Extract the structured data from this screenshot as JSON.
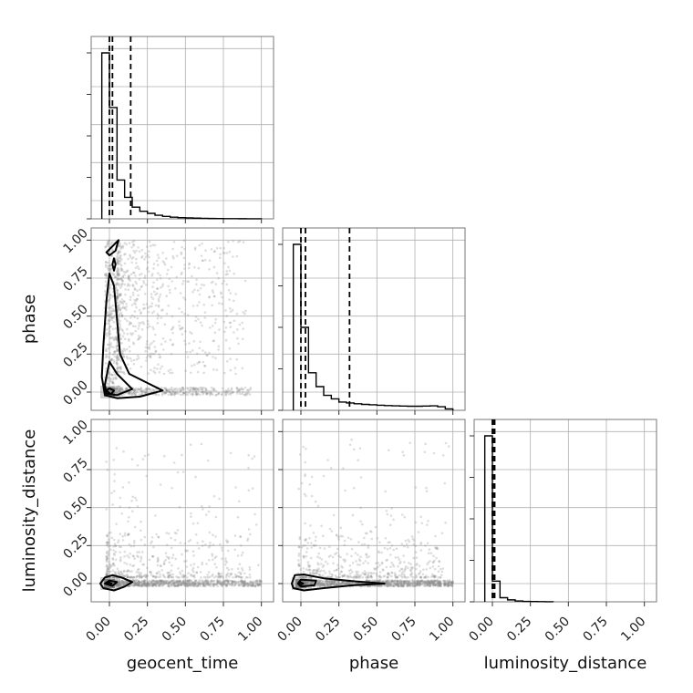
{
  "chart_data": {
    "type": "corner",
    "parameters": [
      "geocent_time",
      "phase",
      "luminosity_distance"
    ],
    "axis_labels": {
      "x": [
        "geocent_time",
        "phase",
        "luminosity_distance"
      ],
      "y": [
        "",
        "phase",
        "luminosity_distance"
      ]
    },
    "range": [
      -0.12,
      1.08
    ],
    "tick_values": [
      0.0,
      0.25,
      0.5,
      0.75,
      1.0
    ],
    "tick_labels": [
      "0.00",
      "0.25",
      "0.50",
      "0.75",
      "1.00"
    ],
    "grid": true,
    "marginals": [
      {
        "parameter": "geocent_time",
        "bin_edges": [
          -0.05,
          0.0,
          0.05,
          0.1,
          0.15,
          0.2,
          0.25,
          0.3,
          0.35,
          0.4,
          0.45,
          0.5,
          0.55,
          0.6,
          0.65,
          0.7,
          0.75,
          0.8,
          0.85,
          0.9,
          0.95,
          1.0
        ],
        "counts": [
          4400,
          2950,
          1030,
          570,
          310,
          200,
          145,
          95,
          65,
          45,
          32,
          24,
          18,
          13,
          9,
          7,
          5,
          4,
          3,
          2,
          2
        ],
        "quantiles": [
          0.0,
          0.02,
          0.14
        ]
      },
      {
        "parameter": "phase",
        "bin_edges": [
          -0.05,
          0.0,
          0.05,
          0.1,
          0.15,
          0.2,
          0.25,
          0.3,
          0.35,
          0.4,
          0.45,
          0.5,
          0.55,
          0.6,
          0.65,
          0.7,
          0.75,
          0.8,
          0.85,
          0.9,
          0.95,
          1.0
        ],
        "counts": [
          4200,
          2100,
          950,
          600,
          380,
          290,
          210,
          185,
          165,
          150,
          140,
          128,
          120,
          113,
          108,
          104,
          104,
          108,
          115,
          92,
          35
        ],
        "quantiles": [
          0.0,
          0.03,
          0.32
        ]
      },
      {
        "parameter": "luminosity_distance",
        "bin_edges": [
          -0.05,
          0.0,
          0.05,
          0.1,
          0.15,
          0.2,
          0.25,
          0.3,
          0.35,
          0.4
        ],
        "counts": [
          3850,
          480,
          95,
          45,
          20,
          10,
          6,
          3,
          2
        ],
        "quantiles": [
          0.0,
          0.005,
          0.015
        ]
      }
    ],
    "joint": [
      {
        "x": "geocent_time",
        "y": "phase",
        "density_peak": [
          0.0,
          0.0
        ],
        "contours": [
          [
            [
              -0.05,
              0.1
            ],
            [
              -0.04,
              0.3
            ],
            [
              -0.02,
              0.6
            ],
            [
              0.0,
              0.78
            ],
            [
              0.03,
              0.7
            ],
            [
              0.05,
              0.48
            ],
            [
              0.07,
              0.25
            ],
            [
              0.13,
              0.12
            ],
            [
              0.25,
              0.06
            ],
            [
              0.35,
              0.01
            ],
            [
              0.2,
              -0.03
            ],
            [
              0.05,
              -0.04
            ],
            [
              -0.03,
              -0.02
            ],
            [
              -0.05,
              0.1
            ]
          ],
          [
            [
              -0.03,
              0.05
            ],
            [
              0.0,
              0.2
            ],
            [
              0.05,
              0.12
            ],
            [
              0.15,
              0.02
            ],
            [
              0.05,
              -0.02
            ],
            [
              -0.02,
              -0.01
            ],
            [
              -0.03,
              0.05
            ]
          ],
          [
            [
              -0.02,
              0.01
            ],
            [
              0.0,
              0.025
            ],
            [
              0.03,
              0.01
            ],
            [
              0.01,
              -0.015
            ],
            [
              -0.02,
              0.01
            ]
          ],
          [
            [
              -0.02,
              0.92
            ],
            [
              0.04,
              0.98
            ],
            [
              0.06,
              1.0
            ],
            [
              0.04,
              0.93
            ],
            [
              0.0,
              0.9
            ],
            [
              -0.02,
              0.92
            ]
          ],
          [
            [
              0.02,
              0.84
            ],
            [
              0.03,
              0.88
            ],
            [
              0.04,
              0.84
            ],
            [
              0.03,
              0.8
            ],
            [
              0.02,
              0.84
            ]
          ]
        ]
      },
      {
        "x": "geocent_time",
        "y": "luminosity_distance",
        "density_peak": [
          0.0,
          0.0
        ],
        "contours": [
          [
            [
              -0.06,
              0.0
            ],
            [
              -0.03,
              0.04
            ],
            [
              0.02,
              0.055
            ],
            [
              0.08,
              0.04
            ],
            [
              0.15,
              0.01
            ],
            [
              0.1,
              -0.02
            ],
            [
              0.03,
              -0.045
            ],
            [
              -0.04,
              -0.03
            ],
            [
              -0.06,
              0.0
            ]
          ],
          [
            [
              -0.03,
              0.0
            ],
            [
              0.0,
              0.02
            ],
            [
              0.05,
              0.01
            ],
            [
              0.02,
              -0.015
            ],
            [
              -0.03,
              0.0
            ]
          ],
          [
            [
              -0.015,
              0.0
            ],
            [
              0.0,
              0.008
            ],
            [
              0.015,
              0.0
            ],
            [
              0.0,
              -0.008
            ],
            [
              -0.015,
              0.0
            ]
          ]
        ]
      },
      {
        "x": "phase",
        "y": "luminosity_distance",
        "density_peak": [
          0.0,
          0.0
        ],
        "contours": [
          [
            [
              -0.06,
              0.0
            ],
            [
              -0.04,
              0.055
            ],
            [
              0.02,
              0.06
            ],
            [
              0.15,
              0.035
            ],
            [
              0.35,
              0.015
            ],
            [
              0.55,
              0.0
            ],
            [
              0.35,
              -0.01
            ],
            [
              0.15,
              -0.03
            ],
            [
              0.02,
              -0.045
            ],
            [
              -0.05,
              -0.03
            ],
            [
              -0.06,
              0.0
            ]
          ],
          [
            [
              -0.02,
              0.0
            ],
            [
              0.0,
              0.025
            ],
            [
              0.1,
              0.02
            ],
            [
              0.09,
              -0.01
            ],
            [
              0.0,
              -0.02
            ],
            [
              -0.02,
              0.0
            ]
          ],
          [
            [
              -0.015,
              0.0
            ],
            [
              0.0,
              0.008
            ],
            [
              0.015,
              0.0
            ],
            [
              0.0,
              -0.008
            ],
            [
              -0.015,
              0.0
            ]
          ]
        ]
      }
    ]
  }
}
